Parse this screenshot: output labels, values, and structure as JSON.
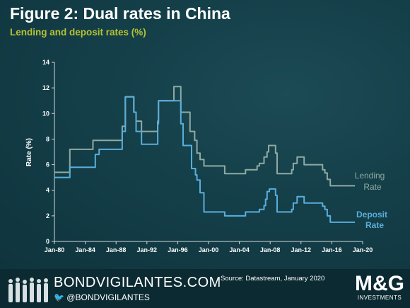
{
  "header": {
    "title": "Figure 2: Dual rates in China",
    "subtitle": "Lending and deposit rates (%)",
    "subtitle_color": "#b5c234"
  },
  "footer": {
    "site": "BONDVIGILANTES.COM",
    "twitter": "@BONDVIGILANTES",
    "source": "Source: Datastream, January 2020",
    "logo_main": "M&G",
    "logo_sub": "INVESTMENTS"
  },
  "chart_data": {
    "type": "line",
    "title": "",
    "xlabel": "",
    "ylabel": "Rate (%)",
    "xlim": [
      1980,
      2020
    ],
    "ylim": [
      0,
      14
    ],
    "x_ticks": [
      "Jan-80",
      "Jan-84",
      "Jan-88",
      "Jan-92",
      "Jan-96",
      "Jan-00",
      "Jan-04",
      "Jan-08",
      "Jan-12",
      "Jan-16",
      "Jan-20"
    ],
    "y_ticks": [
      0,
      2,
      4,
      6,
      8,
      10,
      12,
      14
    ],
    "grid": false,
    "legend": "inline-right",
    "series": [
      {
        "name": "Lending Rate",
        "color": "#8faaa3",
        "points": [
          [
            1980.0,
            5.4
          ],
          [
            1982.0,
            5.4
          ],
          [
            1982.0,
            7.2
          ],
          [
            1985.0,
            7.2
          ],
          [
            1985.0,
            7.9
          ],
          [
            1988.8,
            7.9
          ],
          [
            1988.8,
            9.0
          ],
          [
            1989.2,
            9.0
          ],
          [
            1989.2,
            11.3
          ],
          [
            1990.3,
            11.3
          ],
          [
            1990.3,
            10.1
          ],
          [
            1990.6,
            10.1
          ],
          [
            1990.6,
            9.4
          ],
          [
            1991.3,
            9.4
          ],
          [
            1991.3,
            8.6
          ],
          [
            1993.4,
            8.6
          ],
          [
            1993.4,
            9.4
          ],
          [
            1993.5,
            9.4
          ],
          [
            1993.5,
            11.0
          ],
          [
            1995.5,
            11.0
          ],
          [
            1995.5,
            12.1
          ],
          [
            1996.4,
            12.1
          ],
          [
            1996.4,
            10.1
          ],
          [
            1997.6,
            10.1
          ],
          [
            1997.6,
            8.6
          ],
          [
            1998.2,
            8.6
          ],
          [
            1998.2,
            7.9
          ],
          [
            1998.5,
            7.9
          ],
          [
            1998.5,
            6.9
          ],
          [
            1998.9,
            6.9
          ],
          [
            1998.9,
            6.4
          ],
          [
            1999.4,
            6.4
          ],
          [
            1999.4,
            5.9
          ],
          [
            2002.1,
            5.9
          ],
          [
            2002.1,
            5.3
          ],
          [
            2004.8,
            5.3
          ],
          [
            2004.8,
            5.6
          ],
          [
            2006.3,
            5.6
          ],
          [
            2006.3,
            5.9
          ],
          [
            2006.6,
            5.9
          ],
          [
            2006.6,
            6.1
          ],
          [
            2007.2,
            6.1
          ],
          [
            2007.2,
            6.6
          ],
          [
            2007.6,
            6.6
          ],
          [
            2007.6,
            7.0
          ],
          [
            2007.8,
            7.0
          ],
          [
            2007.8,
            7.5
          ],
          [
            2008.7,
            7.5
          ],
          [
            2008.7,
            6.9
          ],
          [
            2008.9,
            6.9
          ],
          [
            2008.9,
            5.3
          ],
          [
            2010.8,
            5.3
          ],
          [
            2010.8,
            5.6
          ],
          [
            2011.0,
            5.6
          ],
          [
            2011.0,
            6.1
          ],
          [
            2011.5,
            6.1
          ],
          [
            2011.5,
            6.6
          ],
          [
            2012.4,
            6.6
          ],
          [
            2012.4,
            6.0
          ],
          [
            2014.8,
            6.0
          ],
          [
            2014.8,
            5.6
          ],
          [
            2015.1,
            5.6
          ],
          [
            2015.1,
            5.35
          ],
          [
            2015.4,
            5.35
          ],
          [
            2015.4,
            4.85
          ],
          [
            2015.8,
            4.85
          ],
          [
            2015.8,
            4.35
          ],
          [
            2019.0,
            4.35
          ]
        ]
      },
      {
        "name": "Deposit Rate",
        "color": "#5aaedb",
        "points": [
          [
            1980.0,
            5.0
          ],
          [
            1982.0,
            5.0
          ],
          [
            1982.0,
            5.8
          ],
          [
            1985.3,
            5.8
          ],
          [
            1985.3,
            6.8
          ],
          [
            1985.8,
            6.8
          ],
          [
            1985.8,
            7.2
          ],
          [
            1988.8,
            7.2
          ],
          [
            1988.8,
            8.6
          ],
          [
            1989.2,
            8.6
          ],
          [
            1989.2,
            11.3
          ],
          [
            1990.3,
            11.3
          ],
          [
            1990.3,
            10.1
          ],
          [
            1990.6,
            10.1
          ],
          [
            1990.6,
            8.6
          ],
          [
            1991.3,
            8.6
          ],
          [
            1991.3,
            7.6
          ],
          [
            1993.4,
            7.6
          ],
          [
            1993.4,
            9.2
          ],
          [
            1993.5,
            9.2
          ],
          [
            1993.5,
            11.0
          ],
          [
            1996.4,
            11.0
          ],
          [
            1996.4,
            9.2
          ],
          [
            1996.7,
            9.2
          ],
          [
            1996.7,
            7.5
          ],
          [
            1997.8,
            7.5
          ],
          [
            1997.8,
            5.7
          ],
          [
            1998.3,
            5.7
          ],
          [
            1998.3,
            5.2
          ],
          [
            1998.5,
            5.2
          ],
          [
            1998.5,
            4.8
          ],
          [
            1998.9,
            4.8
          ],
          [
            1998.9,
            3.8
          ],
          [
            1999.4,
            3.8
          ],
          [
            1999.4,
            2.3
          ],
          [
            2002.1,
            2.3
          ],
          [
            2002.1,
            2.0
          ],
          [
            2004.8,
            2.0
          ],
          [
            2004.8,
            2.3
          ],
          [
            2006.6,
            2.3
          ],
          [
            2006.6,
            2.5
          ],
          [
            2007.2,
            2.5
          ],
          [
            2007.2,
            2.8
          ],
          [
            2007.4,
            2.8
          ],
          [
            2007.4,
            3.3
          ],
          [
            2007.6,
            3.3
          ],
          [
            2007.6,
            3.9
          ],
          [
            2007.9,
            3.9
          ],
          [
            2007.9,
            4.1
          ],
          [
            2008.7,
            4.1
          ],
          [
            2008.7,
            3.6
          ],
          [
            2008.9,
            3.6
          ],
          [
            2008.9,
            2.3
          ],
          [
            2010.8,
            2.3
          ],
          [
            2010.8,
            2.5
          ],
          [
            2011.0,
            2.5
          ],
          [
            2011.0,
            3.0
          ],
          [
            2011.5,
            3.0
          ],
          [
            2011.5,
            3.5
          ],
          [
            2012.4,
            3.5
          ],
          [
            2012.4,
            3.0
          ],
          [
            2014.8,
            3.0
          ],
          [
            2014.8,
            2.75
          ],
          [
            2015.1,
            2.75
          ],
          [
            2015.1,
            2.5
          ],
          [
            2015.4,
            2.5
          ],
          [
            2015.4,
            2.0
          ],
          [
            2015.8,
            2.0
          ],
          [
            2015.8,
            1.5
          ],
          [
            2019.0,
            1.5
          ]
        ]
      }
    ],
    "labels": {
      "lending": [
        "Lending",
        "Rate"
      ],
      "deposit": [
        "Deposit",
        "Rate"
      ]
    }
  }
}
